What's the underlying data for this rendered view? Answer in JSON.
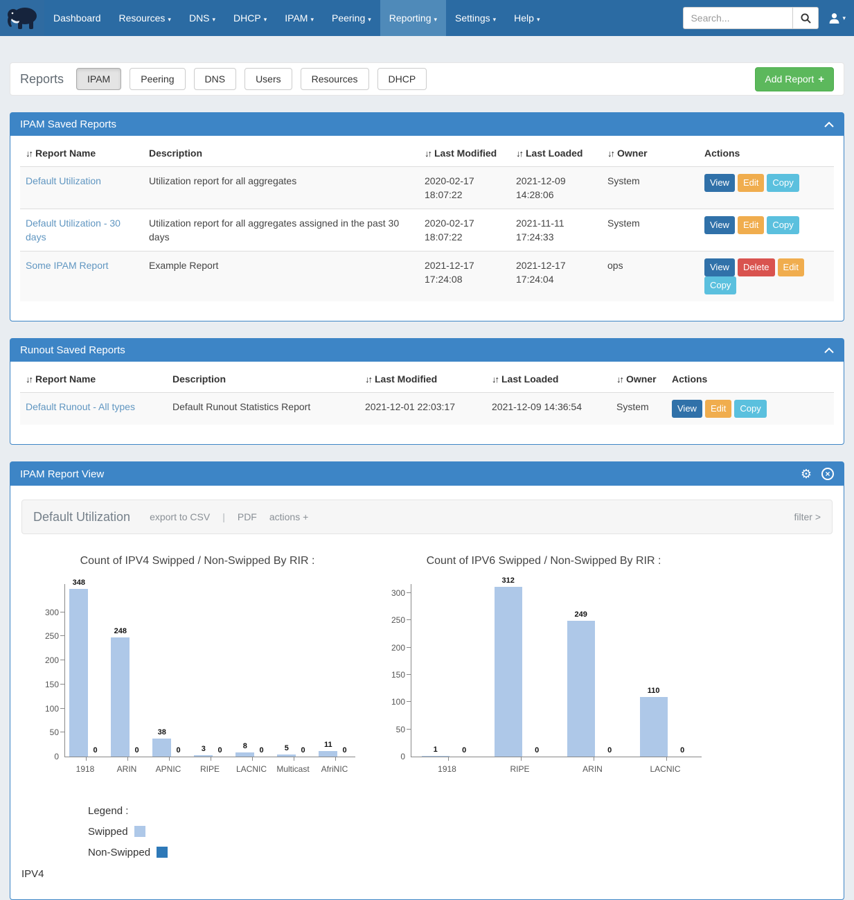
{
  "navbar": {
    "search": {
      "placeholder": "Search..."
    },
    "items": [
      {
        "label": "Dashboard",
        "caret": false,
        "active": false
      },
      {
        "label": "Resources",
        "caret": true,
        "active": false
      },
      {
        "label": "DNS",
        "caret": true,
        "active": false
      },
      {
        "label": "DHCP",
        "caret": true,
        "active": false
      },
      {
        "label": "IPAM",
        "caret": true,
        "active": false
      },
      {
        "label": "Peering",
        "caret": true,
        "active": false
      },
      {
        "label": "Reporting",
        "caret": true,
        "active": true
      },
      {
        "label": "Settings",
        "caret": true,
        "active": false
      },
      {
        "label": "Help",
        "caret": true,
        "active": false
      }
    ]
  },
  "reports_toolbar": {
    "title": "Reports",
    "tabs": [
      {
        "label": "IPAM",
        "active": true
      },
      {
        "label": "Peering",
        "active": false
      },
      {
        "label": "DNS",
        "active": false
      },
      {
        "label": "Users",
        "active": false
      },
      {
        "label": "Resources",
        "active": false
      },
      {
        "label": "DHCP",
        "active": false
      }
    ],
    "add_button_label": "Add Report",
    "add_button_icon": "+"
  },
  "ipam_saved_reports": {
    "title": "IPAM Saved Reports",
    "columns": [
      {
        "label": "Report Name",
        "sortable": true
      },
      {
        "label": "Description",
        "sortable": false
      },
      {
        "label": "Last Modified",
        "sortable": true
      },
      {
        "label": "Last Loaded",
        "sortable": true
      },
      {
        "label": "Owner",
        "sortable": true
      },
      {
        "label": "Actions",
        "sortable": false
      }
    ],
    "rows": [
      {
        "name": "Default Utilization",
        "description": "Utilization report for all aggregates",
        "last_modified": "2020-02-17 18:07:22",
        "last_loaded": "2021-12-09 14:28:06",
        "owner": "System",
        "actions": [
          "View",
          "Edit",
          "Copy"
        ]
      },
      {
        "name": "Default Utilization - 30 days",
        "description": "Utilization report for all aggregates assigned in the past 30 days",
        "last_modified": "2020-02-17 18:07:22",
        "last_loaded": "2021-11-11 17:24:33",
        "owner": "System",
        "actions": [
          "View",
          "Edit",
          "Copy"
        ]
      },
      {
        "name": "Some IPAM Report",
        "description": "Example Report",
        "last_modified": "2021-12-17 17:24:08",
        "last_loaded": "2021-12-17 17:24:04",
        "owner": "ops",
        "actions": [
          "View",
          "Delete",
          "Edit",
          "Copy"
        ]
      }
    ]
  },
  "runout_saved_reports": {
    "title": "Runout Saved Reports",
    "columns": [
      {
        "label": "Report Name",
        "sortable": true
      },
      {
        "label": "Description",
        "sortable": false
      },
      {
        "label": "Last Modified",
        "sortable": true
      },
      {
        "label": "Last Loaded",
        "sortable": true
      },
      {
        "label": "Owner",
        "sortable": true
      },
      {
        "label": "Actions",
        "sortable": false
      }
    ],
    "rows": [
      {
        "name": "Default Runout - All types",
        "description": "Default Runout Statistics Report",
        "last_modified": "2021-12-01 22:03:17",
        "last_loaded": "2021-12-09 14:36:54",
        "owner": "System",
        "actions": [
          "View",
          "Edit",
          "Copy"
        ]
      }
    ]
  },
  "report_view": {
    "title": "IPAM Report View",
    "report_name": "Default Utilization",
    "toolbar": {
      "export_csv": "export to CSV",
      "separator": "|",
      "pdf": "PDF",
      "actions": "actions +",
      "filter": "filter >"
    },
    "legend": {
      "title": "Legend :",
      "items": [
        {
          "label": "Swipped",
          "color": "#aec8e8"
        },
        {
          "label": "Non-Swipped",
          "color": "#2e79b8"
        }
      ]
    },
    "footer_text": "IPV4"
  },
  "chart_data": [
    {
      "type": "bar",
      "title": "Count of IPV4 Swipped / Non-Swipped By RIR :",
      "categories": [
        "1918",
        "ARIN",
        "APNIC",
        "RIPE",
        "LACNIC",
        "Multicast",
        "AfriNIC"
      ],
      "series": [
        {
          "name": "Swipped",
          "color": "#aec8e8",
          "values": [
            348,
            248,
            38,
            3,
            8,
            5,
            11
          ]
        },
        {
          "name": "Non-Swipped",
          "color": "#2e79b8",
          "values": [
            0,
            0,
            0,
            0,
            0,
            0,
            0
          ]
        }
      ],
      "xlabel": "",
      "ylabel": "",
      "yticks": [
        0,
        50,
        100,
        150,
        200,
        250,
        300
      ],
      "ylim": [
        0,
        360
      ],
      "grid": false,
      "legend_position": "bottom-left"
    },
    {
      "type": "bar",
      "title": "Count of IPV6 Swipped / Non-Swipped By RIR :",
      "categories": [
        "1918",
        "RIPE",
        "ARIN",
        "LACNIC"
      ],
      "series": [
        {
          "name": "Swipped",
          "color": "#aec8e8",
          "values": [
            1,
            312,
            249,
            110
          ]
        },
        {
          "name": "Non-Swipped",
          "color": "#2e79b8",
          "values": [
            0,
            0,
            0,
            0
          ]
        }
      ],
      "xlabel": "",
      "ylabel": "",
      "yticks": [
        0,
        50,
        100,
        150,
        200,
        250,
        300
      ],
      "ylim": [
        0,
        318
      ],
      "grid": false,
      "legend_position": "bottom-left"
    }
  ],
  "action_colors": {
    "View": "#3071a9",
    "Delete": "#d9534f",
    "Edit": "#f0ad4e",
    "Copy": "#5bc0de"
  }
}
